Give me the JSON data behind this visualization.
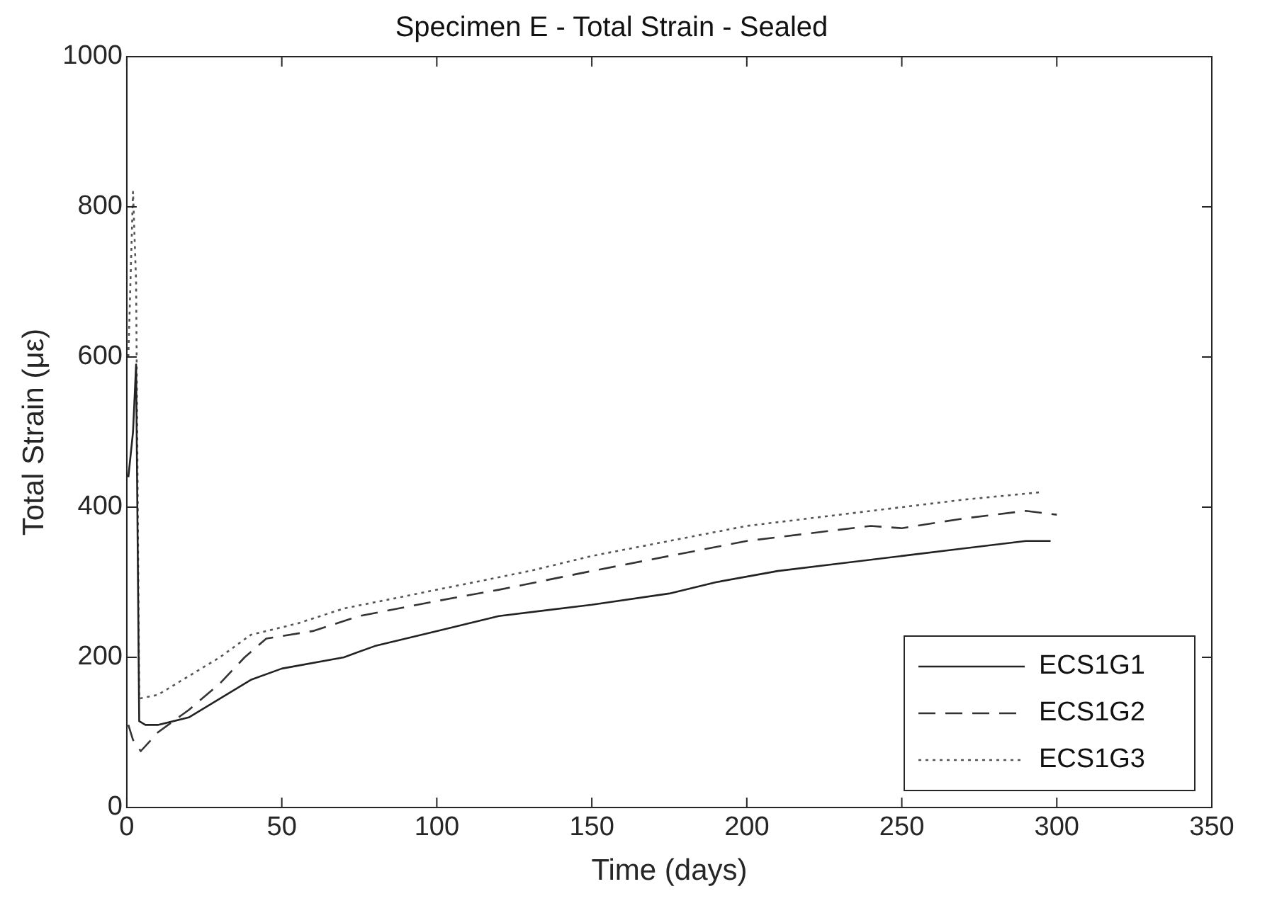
{
  "chart_data": {
    "type": "line",
    "title": "Specimen E - Total Strain - Sealed",
    "xlabel": "Time (days)",
    "ylabel": "Total Strain (με)",
    "xlim": [
      0,
      350
    ],
    "xticks": [
      0,
      50,
      100,
      150,
      200,
      250,
      300,
      350
    ],
    "ylim": [
      0,
      1000
    ],
    "yticks": [
      0,
      200,
      400,
      600,
      800,
      1000
    ],
    "grid": false,
    "legend": "bottom right",
    "marker": "none",
    "series": [
      {
        "name": "ECS1G1",
        "color": "#222222",
        "line_style": "solid",
        "x": [
          0.5,
          2,
          3,
          4,
          6,
          10,
          20,
          30,
          40,
          50,
          70,
          80,
          100,
          120,
          150,
          175,
          190,
          210,
          230,
          250,
          270,
          290,
          298
        ],
        "values": [
          440,
          500,
          590,
          115,
          110,
          110,
          120,
          145,
          170,
          185,
          200,
          215,
          235,
          255,
          270,
          285,
          300,
          315,
          325,
          335,
          345,
          355,
          355
        ]
      },
      {
        "name": "ECS1G2",
        "color": "#333333",
        "line_style": "dashed",
        "x": [
          0.5,
          2,
          4.5,
          10,
          20,
          30,
          38,
          45,
          60,
          75,
          100,
          120,
          150,
          175,
          200,
          220,
          240,
          250,
          270,
          290,
          300
        ],
        "values": [
          110,
          90,
          75,
          100,
          130,
          165,
          200,
          225,
          235,
          255,
          275,
          290,
          315,
          335,
          355,
          365,
          375,
          372,
          385,
          395,
          390
        ]
      },
      {
        "name": "ECS1G3",
        "color": "#555555",
        "line_style": "dotted",
        "x": [
          0.5,
          2,
          3,
          4,
          10,
          20,
          30,
          40,
          55,
          70,
          100,
          130,
          150,
          175,
          200,
          230,
          250,
          270,
          295
        ],
        "values": [
          600,
          820,
          700,
          145,
          150,
          175,
          200,
          230,
          245,
          265,
          290,
          315,
          335,
          355,
          375,
          390,
          400,
          410,
          420
        ]
      }
    ]
  }
}
